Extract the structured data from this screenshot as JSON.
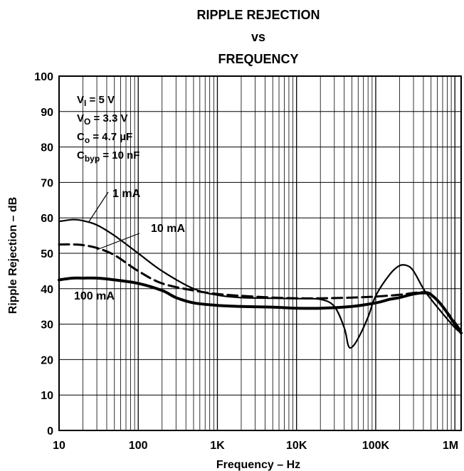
{
  "chart_data": {
    "type": "line",
    "title": [
      "RIPPLE REJECTION",
      "vs",
      "FREQUENCY"
    ],
    "xlabel": "Frequency – Hz",
    "ylabel": "Ripple Rejection – dB",
    "x_scale": "log",
    "xlim": [
      10,
      1200000
    ],
    "ylim": [
      0,
      100
    ],
    "grid": true,
    "x_ticks": [
      {
        "value": 10,
        "label": "10"
      },
      {
        "value": 100,
        "label": "100"
      },
      {
        "value": 1000,
        "label": "1K"
      },
      {
        "value": 10000,
        "label": "10K"
      },
      {
        "value": 100000,
        "label": "100K"
      },
      {
        "value": 1000000,
        "label": "1M"
      }
    ],
    "y_ticks": [
      0,
      10,
      20,
      30,
      40,
      50,
      60,
      70,
      80,
      90,
      100
    ],
    "conditions": [
      {
        "main": "V",
        "sub": "I",
        "rest": " = 5 V"
      },
      {
        "main": "V",
        "sub": "O",
        "rest": " = 3.3 V"
      },
      {
        "main": "C",
        "sub": "o",
        "rest": " = 4.7 µF"
      },
      {
        "main": "C",
        "sub": "byp",
        "rest": " = 10 nF"
      }
    ],
    "series": [
      {
        "name": "1 mA",
        "style": "solid",
        "color": "#000000",
        "x": [
          10,
          15,
          20,
          30,
          50,
          100,
          200,
          500,
          1000,
          2000,
          5000,
          10000,
          20000,
          30000,
          40000,
          45000,
          50000,
          60000,
          80000,
          100000,
          150000,
          200000,
          250000,
          300000,
          400000,
          500000,
          700000,
          1000000,
          1200000
        ],
        "y": [
          59,
          59.5,
          59.2,
          58,
          55,
          50,
          45,
          40,
          38.2,
          37.5,
          37.3,
          37.2,
          37,
          35,
          29,
          24,
          23.5,
          26,
          32,
          38,
          44,
          46.5,
          46.5,
          45,
          40,
          37,
          33,
          29,
          27.5
        ]
      },
      {
        "name": "10 mA",
        "style": "dashed",
        "color": "#000000",
        "x": [
          10,
          15,
          20,
          30,
          50,
          100,
          200,
          500,
          1000,
          2000,
          5000,
          10000,
          20000,
          50000,
          100000,
          200000,
          300000,
          400000,
          500000,
          700000,
          1000000,
          1200000
        ],
        "y": [
          52.5,
          52.5,
          52.3,
          51.5,
          49.5,
          45,
          41.5,
          39.5,
          38.5,
          38,
          37.5,
          37.3,
          37.3,
          37.5,
          37.8,
          38.3,
          38.8,
          39,
          38.5,
          35,
          30.5,
          28
        ]
      },
      {
        "name": "100 mA",
        "style": "solid-thick",
        "color": "#000000",
        "x": [
          10,
          15,
          20,
          30,
          50,
          100,
          200,
          300,
          500,
          1000,
          2000,
          5000,
          10000,
          20000,
          50000,
          100000,
          150000,
          200000,
          300000,
          400000,
          500000,
          700000,
          1000000,
          1200000
        ],
        "y": [
          42.5,
          43,
          43,
          43,
          42.5,
          41.5,
          39.5,
          37.5,
          36,
          35.3,
          35,
          34.8,
          34.5,
          34.5,
          35,
          36,
          37,
          37.5,
          38.5,
          38.8,
          38.3,
          35,
          30,
          27.5
        ]
      }
    ],
    "curve_labels": [
      "1 mA",
      "10 mA",
      "100 mA"
    ]
  }
}
